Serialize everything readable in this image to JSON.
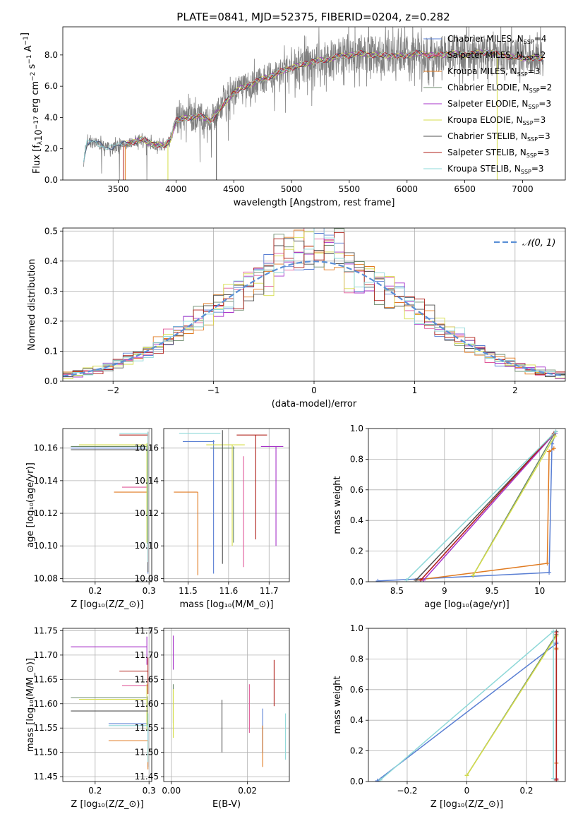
{
  "figure_title": "PLATE=0841, MJD=52375, FIBERID=0204, z=0.282",
  "colors": {
    "Chabrier MILES": "#5a7fd3",
    "Salpeter MILES": "#e15a9a",
    "Kroupa MILES": "#e07a20",
    "Chabrier ELODIE": "#6b8a6b",
    "Salpeter ELODIE": "#a733c9",
    "Kroupa ELODIE": "#d6de4a",
    "Chabrier STELIB": "#505050",
    "Salpeter STELIB": "#b0201a",
    "Kroupa STELIB": "#8ed8d8",
    "data": "#808080",
    "normal": "#5a8fd6"
  },
  "chart_data": [
    {
      "type": "line",
      "xlabel": "wavelength [Angstrom, rest frame]",
      "ylabel": "Flux [f_λ 10^{-17} erg cm^{-2} s^{-1} A^{-1}]",
      "xlim": [
        3020,
        7370
      ],
      "ylim": [
        0,
        9.8
      ],
      "xticks": [
        3500,
        4000,
        4500,
        5000,
        5500,
        6000,
        6500,
        7000
      ],
      "yticks": [
        0,
        2,
        4,
        6,
        8
      ],
      "legend_position": "right",
      "legend": [
        "Chabrier MILES, N_SSP=4",
        "Salpeter MILES, N_SSP=2",
        "Kroupa MILES, N_SSP=3",
        "Chabrier ELODIE, N_SSP=2",
        "Salpeter ELODIE, N_SSP=3",
        "Kroupa ELODIE, N_SSP=3",
        "Chabrier STELIB, N_SSP=3",
        "Salpeter STELIB, N_SSP=3",
        "Kroupa STELIB, N_SSP=3"
      ],
      "data_envelope": {
        "x": [
          3200,
          3230,
          3300,
          3400,
          3500,
          3600,
          3700,
          3800,
          3900,
          3950,
          4000,
          4100,
          4200,
          4300,
          4400,
          4500,
          4600,
          4700,
          4800,
          4900,
          5000,
          5100,
          5200,
          5300,
          5400,
          5500,
          5600,
          5700,
          5800,
          5900,
          6000,
          6100,
          6200,
          6300,
          6400,
          6500,
          6600,
          6700,
          6800,
          6900,
          7000,
          7100,
          7180
        ],
        "y": [
          1.2,
          2.4,
          2.4,
          2.1,
          2.2,
          2.4,
          2.6,
          2.3,
          2.2,
          2.6,
          3.8,
          4.0,
          4.1,
          3.8,
          4.7,
          5.6,
          6.0,
          6.3,
          6.6,
          6.9,
          7.2,
          7.4,
          7.6,
          7.7,
          7.9,
          8.0,
          8.1,
          8.0,
          8.0,
          7.9,
          8.0,
          8.1,
          8.0,
          8.0,
          8.1,
          8.0,
          8.1,
          8.2,
          8.0,
          7.9,
          7.8,
          7.8,
          7.8
        ]
      }
    },
    {
      "type": "area",
      "xlabel": "(data-model)/error",
      "ylabel": "Normed distribution",
      "xlim": [
        -2.5,
        2.5
      ],
      "ylim": [
        0,
        0.51
      ],
      "xticks": [
        -2,
        -1,
        0,
        1,
        2
      ],
      "yticks": [
        0.0,
        0.1,
        0.2,
        0.3,
        0.4,
        0.5
      ],
      "legend": [
        "𝒩(0, 1)"
      ],
      "legend_position": "upper right",
      "bin_width": 0.1
    },
    {
      "type": "scatter",
      "xlabel": "Z [log10(Z/Z_⊙)]",
      "ylabel": "age  [log10(age/yr)]",
      "xlim": [
        0.14,
        0.305
      ],
      "ylim": [
        10.078,
        10.172
      ],
      "xticks": [
        0.2,
        0.3
      ],
      "yticks": [
        10.08,
        10.1,
        10.12,
        10.14,
        10.16
      ],
      "series": [
        {
          "name": "Chabrier MILES",
          "x": 0.298,
          "x_lo": 0.155,
          "y": 10.16,
          "y_lo": 10.083,
          "y_hi": 10.161
        },
        {
          "name": "Salpeter MILES",
          "x": 0.298,
          "x_lo": 0.25,
          "y": 10.136,
          "y_lo": 10.136,
          "y_hi": 10.136
        },
        {
          "name": "Kroupa MILES",
          "x": 0.298,
          "x_lo": 0.235,
          "y": 10.133,
          "y_lo": 10.133,
          "y_hi": 10.133
        },
        {
          "name": "Chabrier ELODIE",
          "x": 0.297,
          "x_lo": 0.155,
          "y": 10.161,
          "y_lo": 10.101,
          "y_hi": 10.162
        },
        {
          "name": "Salpeter ELODIE",
          "x": 0.298,
          "x_lo": 0.298,
          "y": 10.094,
          "y_lo": 10.09,
          "y_hi": 10.099
        },
        {
          "name": "Kroupa ELODIE",
          "x": 0.296,
          "x_lo": 0.17,
          "y": 10.162,
          "y_lo": 10.102,
          "y_hi": 10.163
        },
        {
          "name": "Chabrier STELIB",
          "x": 0.298,
          "x_lo": 0.155,
          "y": 10.159,
          "y_lo": 10.084,
          "y_hi": 10.16
        },
        {
          "name": "Salpeter STELIB",
          "x": 0.298,
          "x_lo": 0.245,
          "y": 10.168,
          "y_lo": 10.09,
          "y_hi": 10.17
        },
        {
          "name": "Kroupa STELIB",
          "x": 0.298,
          "x_lo": 0.245,
          "y": 10.169,
          "y_lo": 10.09,
          "y_hi": 10.17
        }
      ]
    },
    {
      "type": "scatter",
      "xlabel": "mass [log10(M/M_⊙)]",
      "xlim": [
        11.44,
        11.75
      ],
      "ylim": [
        10.078,
        10.172
      ],
      "xticks": [
        11.5,
        11.6,
        11.7
      ],
      "yticks": [
        10.08,
        10.1,
        10.12,
        10.14,
        10.16
      ],
      "series": [
        {
          "name": "Chabrier MILES",
          "x": 11.563,
          "x_lo": 11.487,
          "x_hi": 11.565,
          "y": 10.164,
          "y_lo": 10.083,
          "y_hi": 10.165
        },
        {
          "name": "Salpeter MILES",
          "x": 11.637,
          "x_lo": 11.637,
          "x_hi": 11.637,
          "y": 10.154,
          "y_lo": 10.087,
          "y_hi": 10.155
        },
        {
          "name": "Kroupa MILES",
          "x": 11.524,
          "x_lo": 11.465,
          "x_hi": 11.524,
          "y": 10.133,
          "y_lo": 10.082,
          "y_hi": 10.133
        },
        {
          "name": "Chabrier ELODIE",
          "x": 11.612,
          "x_lo": 11.555,
          "x_hi": 11.615,
          "y": 10.16,
          "y_lo": 10.102,
          "y_hi": 10.161
        },
        {
          "name": "Salpeter ELODIE",
          "x": 11.717,
          "x_lo": 11.68,
          "x_hi": 11.735,
          "y": 10.161,
          "y_lo": 10.1,
          "y_hi": 10.161
        },
        {
          "name": "Kroupa ELODIE",
          "x": 11.609,
          "x_lo": 11.545,
          "x_hi": 11.64,
          "y": 10.162,
          "y_lo": 10.1,
          "y_hi": 10.162
        },
        {
          "name": "Chabrier STELIB",
          "x": 11.585,
          "x_lo": 11.585,
          "x_hi": 11.585,
          "y": 10.168,
          "y_lo": 10.089,
          "y_hi": 10.171
        },
        {
          "name": "Salpeter STELIB",
          "x": 11.667,
          "x_lo": 11.62,
          "x_hi": 11.695,
          "y": 10.168,
          "y_lo": 10.104,
          "y_hi": 10.168
        },
        {
          "name": "Kroupa STELIB",
          "x": 11.555,
          "x_lo": 11.478,
          "x_hi": 11.58,
          "y": 10.169,
          "y_lo": 10.169,
          "y_hi": 10.169
        }
      ]
    },
    {
      "type": "line",
      "xlabel": "age  [log10(age/yr)]",
      "ylabel": "mass weight",
      "xlim": [
        8.2,
        10.27
      ],
      "ylim": [
        0,
        1.0
      ],
      "xticks": [
        8.5,
        9.0,
        9.5,
        10.0
      ],
      "yticks": [
        0.0,
        0.2,
        0.4,
        0.6,
        0.8,
        1.0
      ],
      "series": [
        {
          "name": "Chabrier MILES",
          "x": [
            8.3,
            10.1,
            10.13,
            10.17
          ],
          "y": [
            0.005,
            0.06,
            0.9,
            0.97
          ]
        },
        {
          "name": "Salpeter MILES",
          "x": [
            8.75,
            10.15
          ],
          "y": [
            0.01,
            0.97
          ]
        },
        {
          "name": "Kroupa MILES",
          "x": [
            8.7,
            10.08,
            10.1,
            10.15
          ],
          "y": [
            0.01,
            0.12,
            0.85,
            0.87
          ]
        },
        {
          "name": "Chabrier ELODIE",
          "x": [
            9.3,
            10.15
          ],
          "y": [
            0.04,
            0.96
          ]
        },
        {
          "name": "Salpeter ELODIE",
          "x": [
            8.78,
            10.16
          ],
          "y": [
            0.01,
            0.97
          ]
        },
        {
          "name": "Kroupa ELODIE",
          "x": [
            9.3,
            10.16
          ],
          "y": [
            0.04,
            0.95
          ]
        },
        {
          "name": "Chabrier STELIB",
          "x": [
            8.7,
            10.17
          ],
          "y": [
            0.01,
            0.98
          ]
        },
        {
          "name": "Salpeter STELIB",
          "x": [
            8.75,
            10.15
          ],
          "y": [
            0.01,
            0.97
          ]
        },
        {
          "name": "Kroupa STELIB",
          "x": [
            8.6,
            10.17
          ],
          "y": [
            0.01,
            0.98
          ]
        }
      ]
    },
    {
      "type": "scatter",
      "xlabel": "Z [log10(Z/Z_⊙)]",
      "ylabel": "mass [log10(M/M_⊙)]",
      "xlim": [
        0.14,
        0.305
      ],
      "ylim": [
        11.44,
        11.755
      ],
      "xticks": [
        0.2,
        0.3
      ],
      "yticks": [
        11.45,
        11.5,
        11.55,
        11.6,
        11.65,
        11.7,
        11.75
      ],
      "series": [
        {
          "name": "Chabrier MILES",
          "x": 0.298,
          "x_lo": 0.225,
          "y": 11.559,
          "y_lo": 11.47,
          "y_hi": 11.56
        },
        {
          "name": "Salpeter MILES",
          "x": 0.298,
          "x_lo": 0.25,
          "y": 11.637,
          "y_lo": 11.637,
          "y_hi": 11.637
        },
        {
          "name": "Kroupa MILES",
          "x": 0.298,
          "x_lo": 0.225,
          "y": 11.524,
          "y_lo": 11.465,
          "y_hi": 11.524
        },
        {
          "name": "Chabrier ELODIE",
          "x": 0.297,
          "x_lo": 0.155,
          "y": 11.612,
          "y_lo": 11.555,
          "y_hi": 11.615
        },
        {
          "name": "Salpeter ELODIE",
          "x": 0.296,
          "x_lo": 0.155,
          "y": 11.717,
          "y_lo": 11.68,
          "y_hi": 11.738
        },
        {
          "name": "Kroupa ELODIE",
          "x": 0.296,
          "x_lo": 0.17,
          "y": 11.609,
          "y_lo": 11.545,
          "y_hi": 11.64
        },
        {
          "name": "Chabrier STELIB",
          "x": 0.298,
          "x_lo": 0.155,
          "y": 11.585,
          "y_lo": 11.585,
          "y_hi": 11.585
        },
        {
          "name": "Salpeter STELIB",
          "x": 0.298,
          "x_lo": 0.245,
          "y": 11.667,
          "y_lo": 11.62,
          "y_hi": 11.695
        },
        {
          "name": "Kroupa STELIB",
          "x": 0.298,
          "x_lo": 0.225,
          "y": 11.555,
          "y_lo": 11.48,
          "y_hi": 11.58
        }
      ]
    },
    {
      "type": "scatter",
      "xlabel": "E(B-V)",
      "xlim": [
        -0.002,
        0.031
      ],
      "ylim": [
        11.44,
        11.755
      ],
      "xticks": [
        0.0,
        0.02
      ],
      "yticks": [
        11.45,
        11.5,
        11.55,
        11.6,
        11.65,
        11.7,
        11.75
      ],
      "series": [
        {
          "name": "Chabrier MILES",
          "x": 0.024,
          "y_lo": 11.5,
          "y_hi": 11.59
        },
        {
          "name": "Salpeter MILES",
          "x": 0.0205,
          "y_lo": 11.54,
          "y_hi": 11.64
        },
        {
          "name": "Kroupa MILES",
          "x": 0.024,
          "y_lo": 11.47,
          "y_hi": 11.555
        },
        {
          "name": "Chabrier ELODIE",
          "x": 0.0005,
          "y_lo": 11.56,
          "y_hi": 11.64
        },
        {
          "name": "Salpeter ELODIE",
          "x": 0.0005,
          "y_lo": 11.67,
          "y_hi": 11.74
        },
        {
          "name": "Kroupa ELODIE",
          "x": 0.0005,
          "y_lo": 11.53,
          "y_hi": 11.63
        },
        {
          "name": "Chabrier STELIB",
          "x": 0.0133,
          "y_lo": 11.5,
          "y_hi": 11.608
        },
        {
          "name": "Salpeter STELIB",
          "x": 0.027,
          "y_lo": 11.595,
          "y_hi": 11.69
        },
        {
          "name": "Kroupa STELIB",
          "x": 0.03,
          "y_lo": 11.485,
          "y_hi": 11.58
        }
      ]
    },
    {
      "type": "line",
      "xlabel": "Z [log10(Z/Z_⊙)]",
      "ylabel": "mass weight",
      "xlim": [
        -0.33,
        0.33
      ],
      "ylim": [
        0,
        1.0
      ],
      "xticks": [
        -0.2,
        0.0,
        0.2
      ],
      "yticks": [
        0.0,
        0.2,
        0.4,
        0.6,
        0.8,
        1.0
      ],
      "series": [
        {
          "name": "Chabrier MILES",
          "x": [
            -0.3,
            0.3,
            0.3,
            0.3
          ],
          "y": [
            0.005,
            0.9,
            0.91,
            0.97
          ]
        },
        {
          "name": "Salpeter MILES",
          "x": [
            0.3,
            0.3
          ],
          "y": [
            0.02,
            0.97
          ]
        },
        {
          "name": "Kroupa MILES",
          "x": [
            0.3,
            0.3,
            0.3
          ],
          "y": [
            0.12,
            0.86,
            0.87
          ]
        },
        {
          "name": "Chabrier ELODIE",
          "x": [
            0.0,
            0.3
          ],
          "y": [
            0.04,
            0.96
          ]
        },
        {
          "name": "Salpeter ELODIE",
          "x": [
            0.3,
            0.3
          ],
          "y": [
            0.01,
            0.97
          ]
        },
        {
          "name": "Kroupa ELODIE",
          "x": [
            0.0,
            0.3
          ],
          "y": [
            0.04,
            0.95
          ]
        },
        {
          "name": "Chabrier STELIB",
          "x": [
            0.3,
            0.3
          ],
          "y": [
            0.01,
            0.98
          ]
        },
        {
          "name": "Salpeter STELIB",
          "x": [
            0.3,
            0.3
          ],
          "y": [
            0.01,
            0.97
          ]
        },
        {
          "name": "Kroupa STELIB",
          "x": [
            -0.29,
            0.29,
            0.29
          ],
          "y": [
            0.01,
            0.98,
            0.02
          ]
        }
      ]
    }
  ]
}
